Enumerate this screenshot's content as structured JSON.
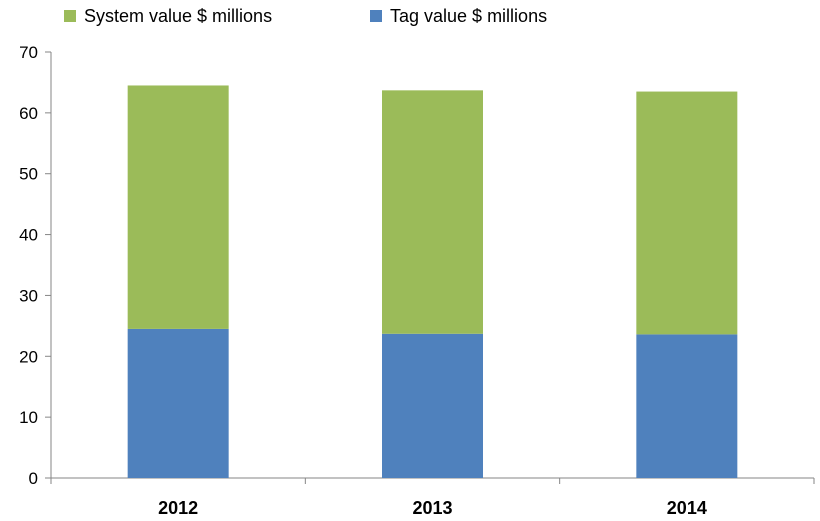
{
  "chart_data": {
    "type": "bar",
    "stacked": true,
    "categories": [
      "2012",
      "2013",
      "2014"
    ],
    "series": [
      {
        "name": "Tag value $ millions",
        "color": "#4F81BD",
        "values": [
          24.5,
          23.7,
          23.6
        ]
      },
      {
        "name": "System value $ millions",
        "color": "#9BBB59",
        "values": [
          40.0,
          40.0,
          39.9
        ]
      }
    ],
    "legend_order": [
      1,
      0
    ],
    "legend_position": "top",
    "ylim": [
      0,
      70
    ],
    "yticks": [
      "0",
      "10",
      "20",
      "30",
      "40",
      "50",
      "60",
      "70"
    ],
    "grid": false
  }
}
